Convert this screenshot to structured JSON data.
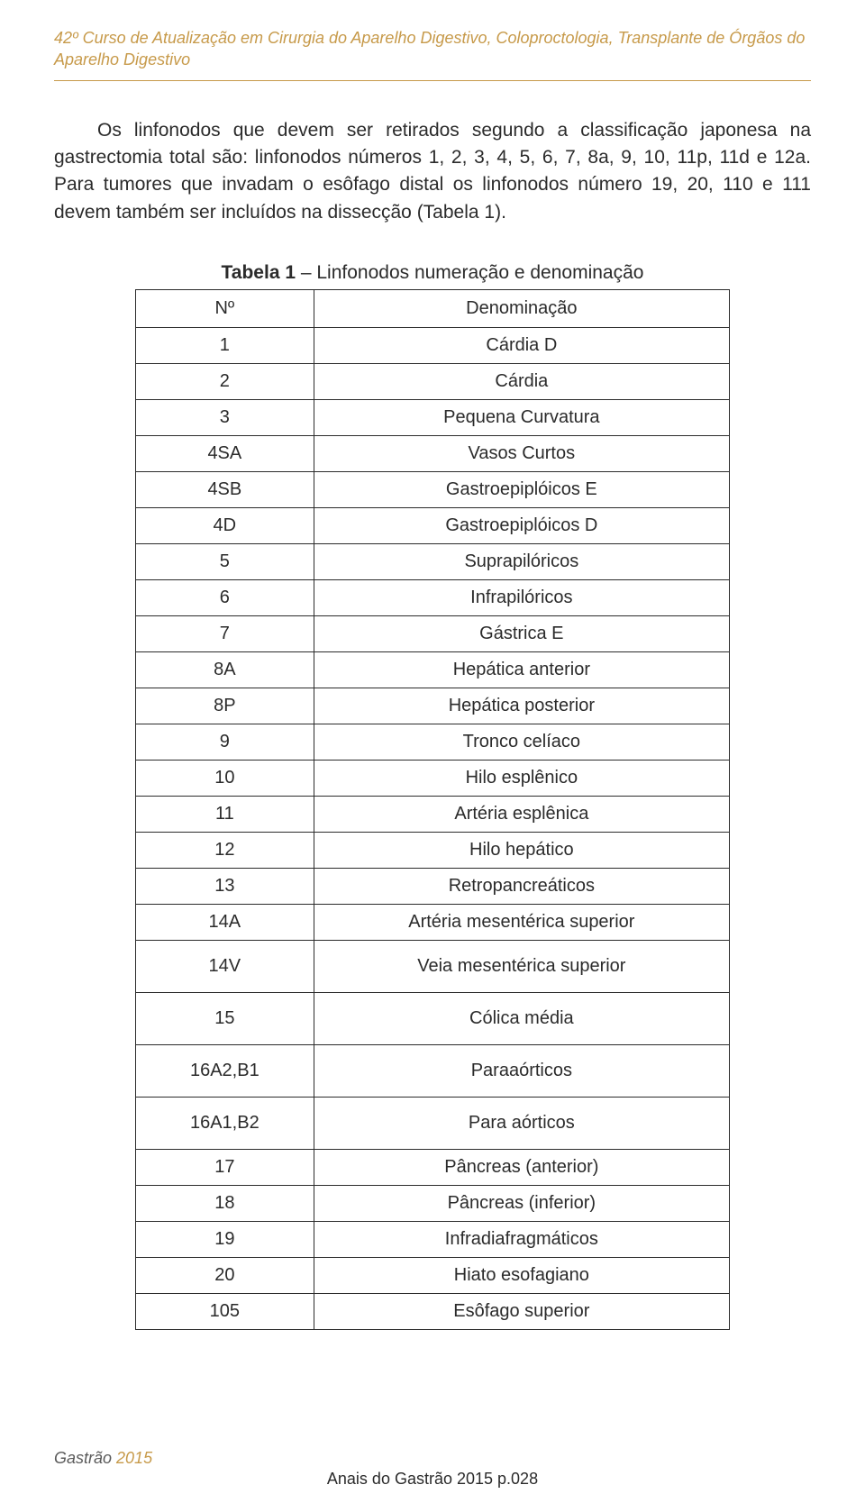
{
  "header": {
    "text": "42º Curso de Atualização em Cirurgia do Aparelho Digestivo, Coloproctologia, Transplante de Órgãos do Aparelho Digestivo"
  },
  "paragraph": {
    "text": "Os linfonodos que devem ser retirados segundo a classificação japonesa na gastrectomia total são: linfonodos números 1, 2, 3, 4, 5, 6, 7, 8a, 9, 10, 11p, 11d e 12a. Para tumores que invadam o esôfago distal os linfonodos número 19, 20, 110 e 111 devem também ser incluídos na dissecção (Tabela 1)."
  },
  "table": {
    "caption_bold": "Tabela 1",
    "caption_rest": " – Linfonodos numeração e denominação",
    "columns": [
      "Nº",
      "Denominação"
    ],
    "rows": [
      {
        "n": "1",
        "d": "Cárdia D",
        "tall": false
      },
      {
        "n": "2",
        "d": "Cárdia",
        "tall": false
      },
      {
        "n": "3",
        "d": "Pequena Curvatura",
        "tall": false
      },
      {
        "n": "4SA",
        "d": "Vasos Curtos",
        "tall": false
      },
      {
        "n": "4SB",
        "d": "Gastroepiplóicos E",
        "tall": false
      },
      {
        "n": "4D",
        "d": "Gastroepiplóicos D",
        "tall": false
      },
      {
        "n": "5",
        "d": "Suprapilóricos",
        "tall": false
      },
      {
        "n": "6",
        "d": "Infrapilóricos",
        "tall": false
      },
      {
        "n": "7",
        "d": "Gástrica E",
        "tall": false
      },
      {
        "n": "8A",
        "d": "Hepática anterior",
        "tall": false
      },
      {
        "n": "8P",
        "d": "Hepática posterior",
        "tall": false
      },
      {
        "n": "9",
        "d": "Tronco celíaco",
        "tall": false
      },
      {
        "n": "10",
        "d": "Hilo esplênico",
        "tall": false
      },
      {
        "n": "11",
        "d": "Artéria esplênica",
        "tall": false
      },
      {
        "n": "12",
        "d": "Hilo hepático",
        "tall": false
      },
      {
        "n": "13",
        "d": "Retropancreáticos",
        "tall": false
      },
      {
        "n": "14A",
        "d": "Artéria mesentérica superior",
        "tall": false
      },
      {
        "n": "14V",
        "d": "Veia mesentérica superior",
        "tall": true
      },
      {
        "n": "15",
        "d": "Cólica média",
        "tall": true
      },
      {
        "n": "16A2,B1",
        "d": "Paraaórticos",
        "tall": true
      },
      {
        "n": "16A1,B2",
        "d": "Para aórticos",
        "tall": true
      },
      {
        "n": "17",
        "d": "Pâncreas (anterior)",
        "tall": false
      },
      {
        "n": "18",
        "d": "Pâncreas (inferior)",
        "tall": false
      },
      {
        "n": "19",
        "d": "Infradiafragmáticos",
        "tall": false
      },
      {
        "n": "20",
        "d": "Hiato esofagiano",
        "tall": false
      },
      {
        "n": "105",
        "d": "Esôfago superior",
        "tall": false
      }
    ]
  },
  "footer": {
    "label": "Gastrão ",
    "year": "2015",
    "center": "Anais do Gastrão 2015 p.028"
  },
  "colors": {
    "accent": "#c79a4a",
    "text": "#2b2b2b",
    "background": "#ffffff"
  }
}
